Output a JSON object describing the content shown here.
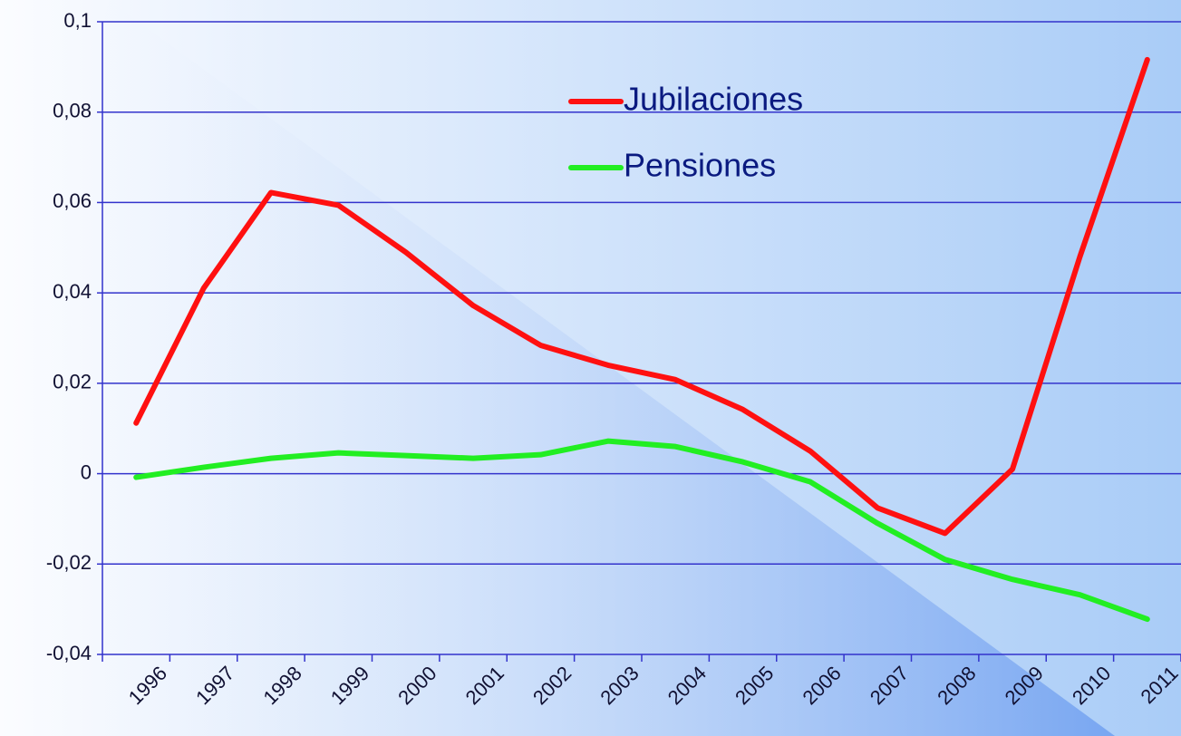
{
  "chart_data": {
    "type": "line",
    "categories": [
      "1996",
      "1997",
      "1998",
      "1999",
      "2000",
      "2001",
      "2002",
      "2003",
      "2004",
      "2005",
      "2006",
      "2007",
      "2008",
      "2009",
      "2010",
      "2011"
    ],
    "series": [
      {
        "name": "Jubilaciones",
        "color": "#ff1010",
        "values": [
          0.0112,
          0.041,
          0.0622,
          0.0594,
          0.049,
          0.0372,
          0.0284,
          0.024,
          0.0208,
          0.0142,
          0.005,
          -0.0076,
          -0.0132,
          0.001,
          0.048,
          0.0916
        ]
      },
      {
        "name": "Pensiones",
        "color": "#22ee22",
        "values": [
          -0.0008,
          0.0014,
          0.0034,
          0.0046,
          0.004,
          0.0034,
          0.0042,
          0.0072,
          0.006,
          0.0026,
          -0.0018,
          -0.011,
          -0.019,
          -0.0234,
          -0.0268,
          -0.0322
        ]
      }
    ],
    "ylim": [
      -0.04,
      0.1
    ],
    "yticks": [
      {
        "value": -0.04,
        "label": "-0,04"
      },
      {
        "value": -0.02,
        "label": "-0,02"
      },
      0,
      {
        "value": 0.02,
        "label": "0,02"
      },
      {
        "value": 0.04,
        "label": "0,04"
      },
      {
        "value": 0.06,
        "label": "0,06"
      },
      {
        "value": 0.08,
        "label": "0,08"
      },
      {
        "value": 0.1,
        "label": "0,1"
      }
    ],
    "grid": true,
    "legend": "upper center"
  }
}
